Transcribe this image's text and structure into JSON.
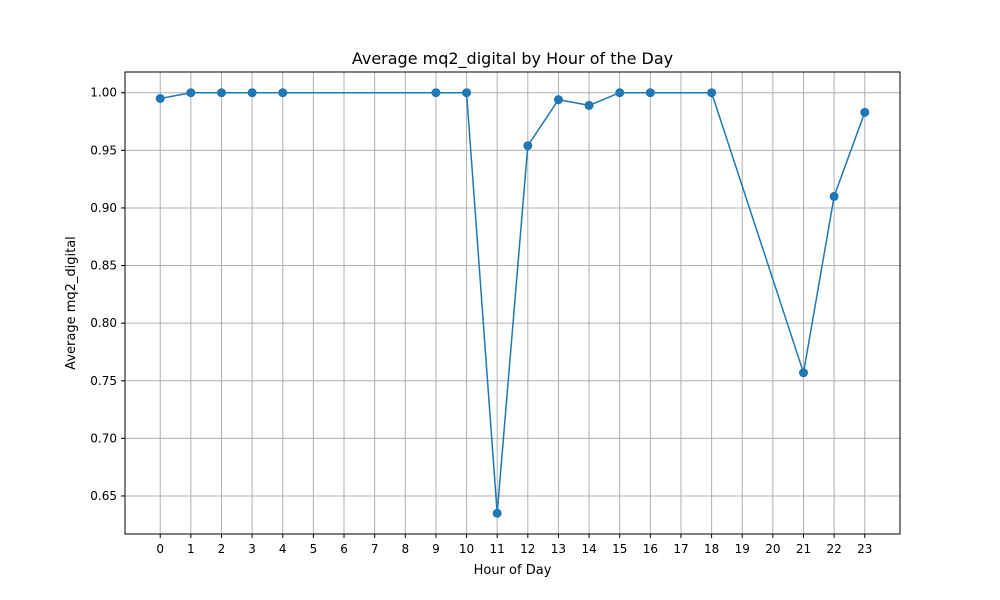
{
  "chart_data": {
    "type": "line",
    "title": "Average mq2_digital by Hour of the Day",
    "xlabel": "Hour of Day",
    "ylabel": "Average mq2_digital",
    "x_ticks": [
      0,
      1,
      2,
      3,
      4,
      5,
      6,
      7,
      8,
      9,
      10,
      11,
      12,
      13,
      14,
      15,
      16,
      17,
      18,
      19,
      20,
      21,
      22,
      23
    ],
    "y_ticks": [
      "0.65",
      "0.70",
      "0.75",
      "0.80",
      "0.85",
      "0.90",
      "0.95",
      "1.00"
    ],
    "xlim": [
      -1.15,
      24.15
    ],
    "ylim": [
      0.617,
      1.018
    ],
    "grid": true,
    "series": [
      {
        "color": "#1f77b4",
        "marker": "circle",
        "points": [
          {
            "x": 0,
            "y": 0.995
          },
          {
            "x": 1,
            "y": 1.0
          },
          {
            "x": 2,
            "y": 1.0
          },
          {
            "x": 3,
            "y": 1.0
          },
          {
            "x": 4,
            "y": 1.0
          },
          {
            "x": 9,
            "y": 1.0
          },
          {
            "x": 10,
            "y": 1.0
          },
          {
            "x": 11,
            "y": 0.635
          },
          {
            "x": 12,
            "y": 0.954
          },
          {
            "x": 13,
            "y": 0.994
          },
          {
            "x": 14,
            "y": 0.989
          },
          {
            "x": 15,
            "y": 1.0
          },
          {
            "x": 16,
            "y": 1.0
          },
          {
            "x": 18,
            "y": 1.0
          },
          {
            "x": 21,
            "y": 0.757
          },
          {
            "x": 22,
            "y": 0.91
          },
          {
            "x": 23,
            "y": 0.983
          }
        ]
      }
    ]
  }
}
